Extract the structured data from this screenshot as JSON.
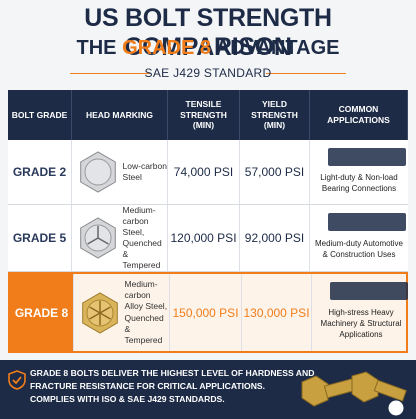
{
  "header": {
    "title": "US BOLT STRENGTH COMPARISON",
    "subtitle_prefix": "THE",
    "subtitle_highlight": "GRADE 8",
    "subtitle_suffix": "ADVANTAGE",
    "standard": "SAE J429 STANDARD"
  },
  "table": {
    "columns": [
      "BOLT GRADE",
      "HEAD MARKING",
      "TENSILE STRENGTH (MIN)",
      "YIELD STRENGTH (MIN)",
      "COMMON APPLICATIONS"
    ],
    "rows": [
      [
        "GRADE 2",
        "Low-carbon Steel",
        "74,000 PSI",
        "57,000 PSI",
        "Light-duty & Non-load Bearing Connections"
      ],
      [
        "GRADE 5",
        "Medium-carbon Steel, Quenched & Tempered",
        "120,000 PSI",
        "92,000 PSI",
        "Medium-duty Automotive & Construction Uses"
      ],
      [
        "GRADE 8",
        "Medium-carbon Alloy Steel, Quenched & Tempered",
        "150,000 PSI",
        "130,000 PSI",
        "High-stress Heavy Machinery & Structural Applications"
      ]
    ]
  },
  "footer": {
    "lines": [
      "GRADE 8 BOLTS DELIVER THE HIGHEST LEVEL OF HARDNESS AND",
      "FRACTURE RESISTANCE FOR CRITICAL APPLICATIONS.",
      "COMPLIES WITH ISO & SAE J429 STANDARDS."
    ]
  }
}
